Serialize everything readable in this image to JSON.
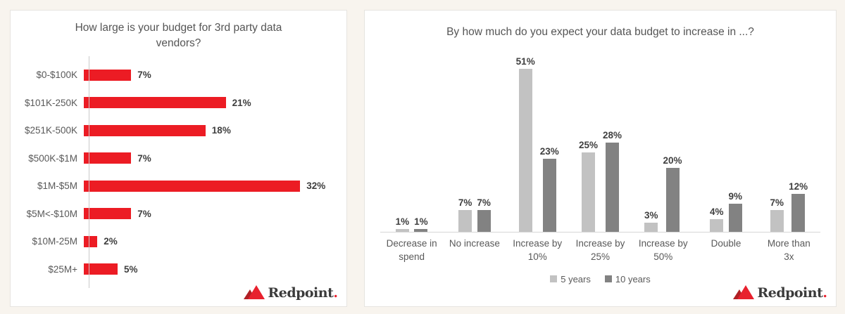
{
  "page": {
    "background": "#f8f4ee",
    "panel_background": "#ffffff",
    "panel_border": "#e6e4e0"
  },
  "logo": {
    "brand": "Redpoint",
    "dot": ".",
    "dark_red": "#b02025",
    "bright_red": "#e8212e",
    "text_color": "#3b3b3b"
  },
  "chart_data": [
    {
      "type": "bar",
      "orientation": "horizontal",
      "title": "How large is your budget for 3rd party data vendors?",
      "categories": [
        "$0-$100K",
        "$101K-250K",
        "$251K-500K",
        "$500K-$1M",
        "$1M-$5M",
        "$5M<-$10M",
        "$10M-25M",
        "$25M+"
      ],
      "values": [
        7,
        21,
        18,
        7,
        32,
        7,
        2,
        5
      ],
      "labels": [
        "7%",
        "21%",
        "18%",
        "7%",
        "32%",
        "7%",
        "2%",
        "5%"
      ],
      "bar_color": "#ec1c24",
      "xlim": [
        0,
        35
      ],
      "grid": false,
      "legend": null
    },
    {
      "type": "bar",
      "orientation": "vertical",
      "title": "By how much do you expect your data budget to increase in ...?",
      "categories": [
        "Decrease in spend",
        "No increase",
        "Increase by 10%",
        "Increase by 25%",
        "Increase by 50%",
        "Double",
        "More than 3x"
      ],
      "series": [
        {
          "name": "5 years",
          "color": "#c2c2c2",
          "values": [
            1,
            7,
            51,
            25,
            3,
            4,
            7
          ],
          "labels": [
            "1%",
            "7%",
            "51%",
            "25%",
            "3%",
            "4%",
            "7%"
          ]
        },
        {
          "name": "10 years",
          "color": "#828282",
          "values": [
            1,
            7,
            23,
            28,
            20,
            9,
            12
          ],
          "labels": [
            "1%",
            "7%",
            "23%",
            "28%",
            "20%",
            "9%",
            "12%"
          ]
        }
      ],
      "ylim": [
        0,
        55
      ],
      "grid": false,
      "legend_position": "bottom"
    }
  ]
}
